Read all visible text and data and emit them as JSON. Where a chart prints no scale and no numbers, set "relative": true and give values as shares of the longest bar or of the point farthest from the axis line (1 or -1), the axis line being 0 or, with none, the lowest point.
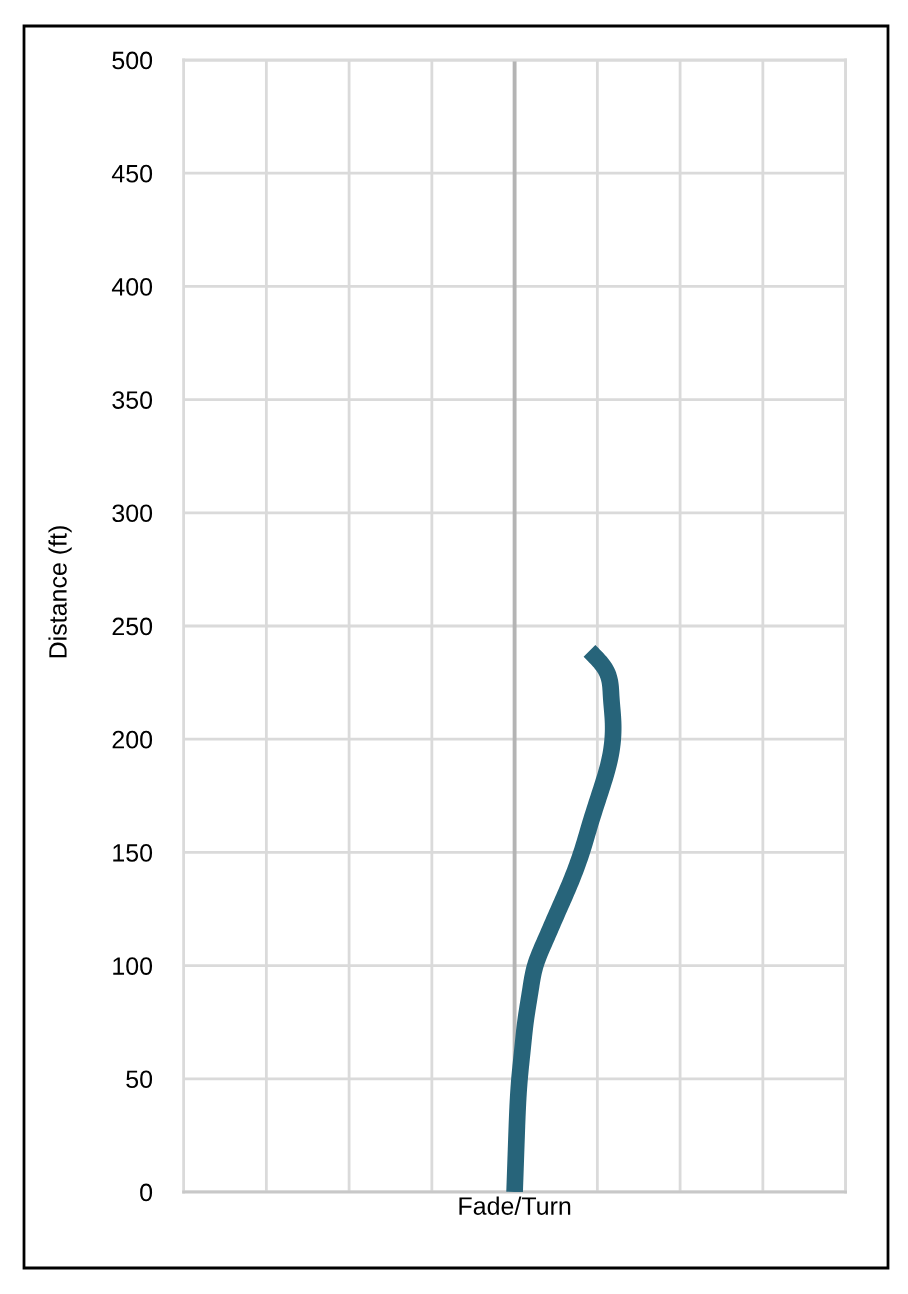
{
  "chart_data": {
    "type": "line",
    "orientation": "horizontal",
    "relative": true,
    "xlabel": "Fade/Turn",
    "ylabel": "Distance (ft)",
    "series": [
      {
        "color": "#27647a",
        "x": [
          0,
          25,
          50,
          63,
          75,
          89,
          100,
          111,
          122,
          136,
          150,
          163,
          178,
          192,
          207,
          219,
          231,
          239
        ],
        "values": [
          0,
          0.02,
          0.05,
          0.08,
          0.11,
          0.16,
          0.21,
          0.31,
          0.42,
          0.56,
          0.68,
          0.77,
          0.88,
          0.97,
          1,
          0.98,
          0.92,
          0.76
        ]
      }
    ],
    "ylim": [
      0,
      500
    ],
    "yticks": [
      0,
      50,
      100,
      150,
      200,
      250,
      300,
      350,
      400,
      450,
      500
    ],
    "grid": true,
    "line_style": "solid"
  }
}
